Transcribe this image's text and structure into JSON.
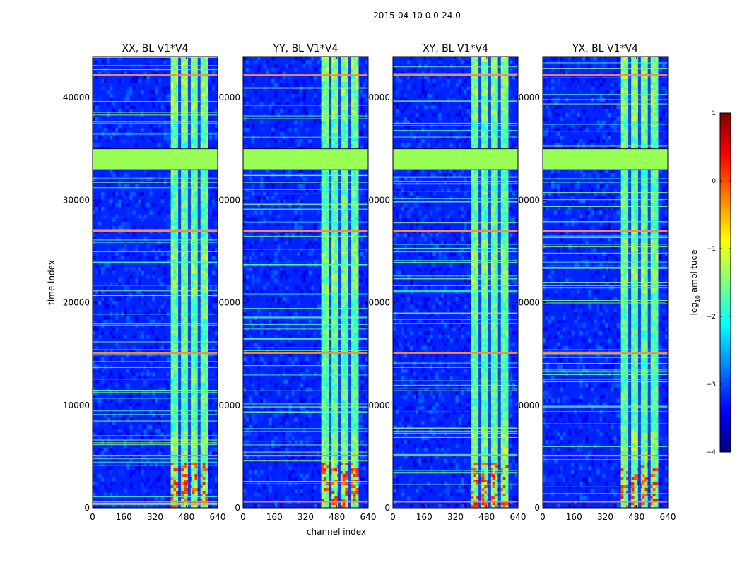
{
  "chart_data": {
    "type": "heatmap",
    "suptitle": "2015-04-10 0.0-24.0",
    "xlabel": "channel index",
    "ylabel": "time index",
    "xlim": [
      0,
      640
    ],
    "ylim": [
      0,
      44000
    ],
    "xticks": [
      0,
      160,
      320,
      480,
      640
    ],
    "yticks": [
      0,
      10000,
      20000,
      30000,
      40000
    ],
    "panels": [
      {
        "title": "XX, BL V1*V4",
        "ytick_labels": [
          "0",
          "10000",
          "20000",
          "30000",
          "40000"
        ]
      },
      {
        "title": "YY, BL V1*V4",
        "ytick_labels": [
          "0",
          "0000",
          "0000",
          "0000",
          "0000"
        ]
      },
      {
        "title": "XY, BL V1*V4",
        "ytick_labels": [
          "0",
          "0000",
          "0000",
          "0000",
          "0000"
        ]
      },
      {
        "title": "YX, BL V1*V4",
        "ytick_labels": [
          "0",
          "0000",
          "0000",
          "0000",
          "0000"
        ]
      }
    ],
    "colorbar": {
      "label": "log10 amplitude",
      "label_base": "log",
      "label_sub": "10",
      "label_rest": " amplitude",
      "colormap": "jet",
      "range": [
        -4,
        1
      ],
      "ticks": [
        -4,
        -3,
        -2,
        -1,
        0,
        1
      ],
      "tick_labels": [
        "−4",
        "−3",
        "−2",
        "−1",
        "0",
        "1"
      ]
    },
    "features": {
      "flagged_block_time": [
        33000,
        35000
      ],
      "bright_channels": [
        400,
        590
      ],
      "channel_gaps": [
        445,
        495,
        545
      ],
      "flagged_block_color": "#99ff55",
      "background_level": -3.2,
      "rfi_band_level": -1.7,
      "hot_lines_time": [
        600,
        5100,
        15100,
        27000,
        33000,
        42200
      ],
      "hot_lines_color": "#ff8a3c"
    }
  }
}
